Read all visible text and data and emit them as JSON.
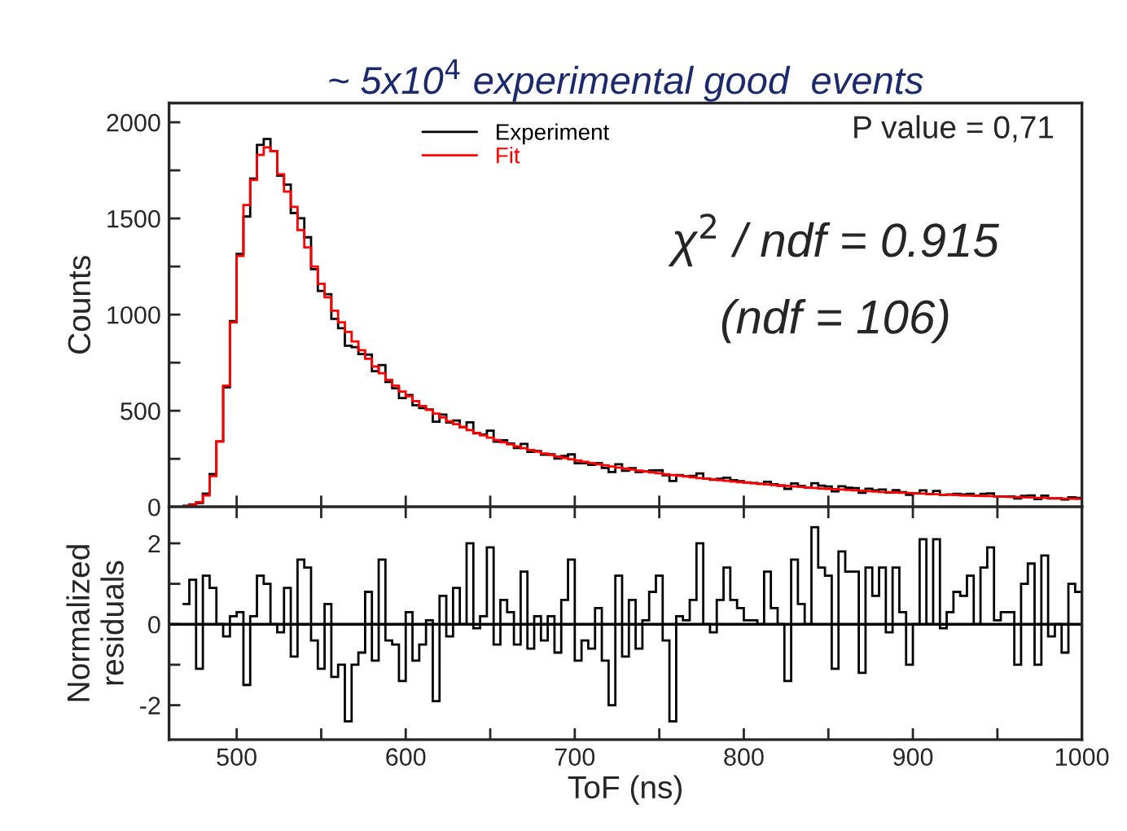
{
  "chart_data": [
    {
      "type": "histogram",
      "title": "~ 5x10$^{4}$ experimental good  events",
      "ylabel": "Counts",
      "bins": [
        468,
        472,
        476,
        480,
        484,
        488,
        492,
        496,
        500,
        504,
        508,
        512,
        516,
        520,
        524,
        528,
        532,
        536,
        540,
        544,
        548,
        552,
        556,
        560,
        564,
        568,
        572,
        576,
        580,
        584,
        588,
        592,
        596,
        600,
        604,
        608,
        612,
        616,
        620,
        624,
        628,
        632,
        636,
        640,
        644,
        648,
        652,
        656,
        660,
        664,
        668,
        672,
        676,
        680,
        684,
        688,
        692,
        696,
        700,
        704,
        708,
        712,
        716,
        720,
        724,
        728,
        732,
        736,
        740,
        744,
        748,
        752,
        756,
        760,
        764,
        768,
        772,
        776,
        780,
        784,
        788,
        792,
        796,
        800,
        804,
        808,
        812,
        816,
        820,
        824,
        828,
        832,
        836,
        840,
        844,
        848,
        852,
        856,
        860,
        864,
        868,
        872,
        876,
        880,
        884,
        888,
        892,
        896,
        900,
        904,
        908,
        912,
        916,
        920,
        924,
        928,
        932,
        936,
        940,
        944,
        948,
        952,
        956,
        960,
        964,
        968,
        972,
        976,
        980,
        984,
        988,
        992,
        996,
        1000
      ],
      "series": [
        {
          "name": "Experiment",
          "color": "#000000",
          "values": [
            6,
            13,
            20,
            69,
            171,
            340,
            622,
            966,
            1316,
            1510,
            1708,
            1882,
            1913,
            1850,
            1722,
            1676,
            1528,
            1501,
            1402,
            1236,
            1123,
            1106,
            978,
            929,
            838,
            831,
            795,
            792,
            706,
            737,
            650,
            617,
            566,
            582,
            529,
            514,
            507,
            443,
            480,
            439,
            449,
            415,
            440,
            383,
            376,
            396,
            339,
            347,
            330,
            306,
            328,
            286,
            290,
            271,
            273,
            251,
            265,
            273,
            227,
            228,
            219,
            228,
            203,
            181,
            222,
            188,
            202,
            181,
            185,
            190,
            191,
            165,
            135,
            165,
            159,
            161,
            174,
            146,
            141,
            146,
            152,
            139,
            134,
            127,
            124,
            120,
            131,
            118,
            111,
            94,
            122,
            109,
            101,
            123,
            110,
            106,
            81,
            107,
            100,
            98,
            73,
            95,
            86,
            90,
            75,
            87,
            76,
            63,
            70,
            86,
            67,
            83,
            63,
            65,
            68,
            65,
            68,
            58,
            68,
            70,
            55,
            55,
            54,
            44,
            57,
            60,
            41,
            59,
            44,
            45,
            39,
            50,
            47
          ]
        },
        {
          "name": "Fit",
          "color": "#ff0000",
          "values": [
            5,
            10,
            25,
            60,
            160,
            340,
            630,
            960,
            1305,
            1570,
            1700,
            1830,
            1870,
            1850,
            1730,
            1640,
            1560,
            1440,
            1350,
            1250,
            1160,
            1090,
            1020,
            960,
            910,
            860,
            815,
            770,
            730,
            695,
            660,
            630,
            600,
            575,
            550,
            525,
            505,
            485,
            465,
            445,
            430,
            415,
            400,
            385,
            372,
            360,
            348,
            336,
            325,
            315,
            305,
            296,
            287,
            278,
            270,
            262,
            255,
            248,
            241,
            234,
            228,
            222,
            216,
            210,
            205,
            199,
            194,
            189,
            184,
            179,
            175,
            170,
            166,
            162,
            158,
            154,
            150,
            146,
            143,
            139,
            136,
            132,
            129,
            126,
            123,
            120,
            117,
            114,
            111,
            109,
            106,
            104,
            101,
            99,
            96,
            94,
            92,
            90,
            88,
            86,
            84,
            82,
            80,
            78,
            77,
            75,
            73,
            72,
            70,
            69,
            67,
            66,
            64,
            63,
            62,
            60,
            59,
            58,
            57,
            56,
            54,
            53,
            52,
            51,
            50,
            49,
            48,
            47,
            46,
            45,
            44,
            43,
            42
          ]
        }
      ],
      "xlim": [
        460,
        1000
      ],
      "xticks": [
        500,
        {
          "value": 550,
          "label": null
        },
        600,
        {
          "value": 650,
          "label": null
        },
        700,
        {
          "value": 750,
          "label": null
        },
        800,
        {
          "value": 850,
          "label": null
        },
        900,
        {
          "value": 950,
          "label": null
        },
        1000
      ],
      "ylim": [
        0,
        2100
      ],
      "yticks": [
        0,
        {
          "value": 250,
          "label": null
        },
        500,
        {
          "value": 750,
          "label": null
        },
        1000,
        {
          "value": 1250,
          "label": null
        },
        1500,
        {
          "value": 1750,
          "label": null
        },
        2000
      ],
      "tick_labels": "y",
      "legend": "top",
      "annotations": [
        "P value = 0,71",
        "χ$^{2}$ / ndf = 0.915",
        "(ndf = 106)"
      ]
    },
    {
      "type": "histogram",
      "xlabel": "ToF (ns)",
      "ylabel": "Normalized\nresiduals",
      "bins": [
        468,
        472,
        476,
        480,
        484,
        488,
        492,
        496,
        500,
        504,
        508,
        512,
        516,
        520,
        524,
        528,
        532,
        536,
        540,
        544,
        548,
        552,
        556,
        560,
        564,
        568,
        572,
        576,
        580,
        584,
        588,
        592,
        596,
        600,
        604,
        608,
        612,
        616,
        620,
        624,
        628,
        632,
        636,
        640,
        644,
        648,
        652,
        656,
        660,
        664,
        668,
        672,
        676,
        680,
        684,
        688,
        692,
        696,
        700,
        704,
        708,
        712,
        716,
        720,
        724,
        728,
        732,
        736,
        740,
        744,
        748,
        752,
        756,
        760,
        764,
        768,
        772,
        776,
        780,
        784,
        788,
        792,
        796,
        800,
        804,
        808,
        812,
        816,
        820,
        824,
        828,
        832,
        836,
        840,
        844,
        848,
        852,
        856,
        860,
        864,
        868,
        872,
        876,
        880,
        884,
        888,
        892,
        896,
        900,
        904,
        908,
        912,
        916,
        920,
        924,
        928,
        932,
        936,
        940,
        944,
        948,
        952,
        956,
        960,
        964,
        968,
        972,
        976,
        980,
        984,
        988,
        992,
        996,
        1000
      ],
      "series": [
        {
          "color": "#000000",
          "values": [
            0.5,
            1.1,
            -1.1,
            1.2,
            0.9,
            0.0,
            -0.3,
            0.2,
            0.3,
            -1.5,
            0.2,
            1.2,
            1.0,
            0.0,
            -0.2,
            0.9,
            -0.8,
            1.6,
            1.4,
            -0.4,
            -1.1,
            0.5,
            -1.3,
            -1.0,
            -2.4,
            -1.0,
            -0.7,
            0.8,
            -0.9,
            1.6,
            -0.4,
            -0.5,
            -1.4,
            0.3,
            -0.9,
            -0.5,
            0.1,
            -1.9,
            0.7,
            -0.3,
            0.9,
            0.0,
            2.0,
            -0.1,
            0.2,
            1.9,
            -0.5,
            0.6,
            0.3,
            -0.5,
            1.3,
            -0.6,
            0.2,
            -0.4,
            0.2,
            -0.7,
            0.6,
            1.6,
            -0.9,
            -0.4,
            -0.6,
            0.4,
            -0.9,
            -2.0,
            1.2,
            -0.8,
            0.6,
            -0.6,
            0.1,
            0.8,
            1.2,
            -0.4,
            -2.4,
            0.2,
            0.1,
            0.6,
            2.0,
            0.0,
            -0.2,
            0.6,
            1.4,
            0.6,
            0.4,
            0.1,
            0.1,
            0.0,
            1.3,
            0.4,
            0.0,
            -1.4,
            1.6,
            0.5,
            0.0,
            2.4,
            1.4,
            1.2,
            -1.1,
            1.8,
            1.3,
            1.3,
            -1.2,
            1.4,
            0.7,
            1.4,
            -0.2,
            1.4,
            0.3,
            -1.0,
            0.0,
            2.1,
            0.0,
            2.1,
            -0.1,
            0.3,
            0.8,
            0.7,
            1.2,
            0.0,
            1.4,
            1.9,
            0.1,
            0.3,
            0.3,
            -1.0,
            1.0,
            1.5,
            -1.0,
            1.7,
            -0.3,
            0.0,
            -0.7,
            1.0,
            0.8
          ]
        }
      ],
      "xlim": [
        460,
        1000
      ],
      "xticks": [
        500,
        {
          "value": 550,
          "label": null
        },
        600,
        {
          "value": 650,
          "label": null
        },
        700,
        {
          "value": 750,
          "label": null
        },
        800,
        {
          "value": 850,
          "label": null
        },
        900,
        {
          "value": 950,
          "label": null
        },
        1000
      ],
      "ylim": [
        -2.85,
        2.9
      ],
      "yticks": [
        -2,
        {
          "value": -1,
          "label": null
        },
        0,
        {
          "value": 1,
          "label": null
        },
        2
      ],
      "ref_lines": [
        {
          "axis": "y",
          "value": 0
        }
      ]
    }
  ]
}
